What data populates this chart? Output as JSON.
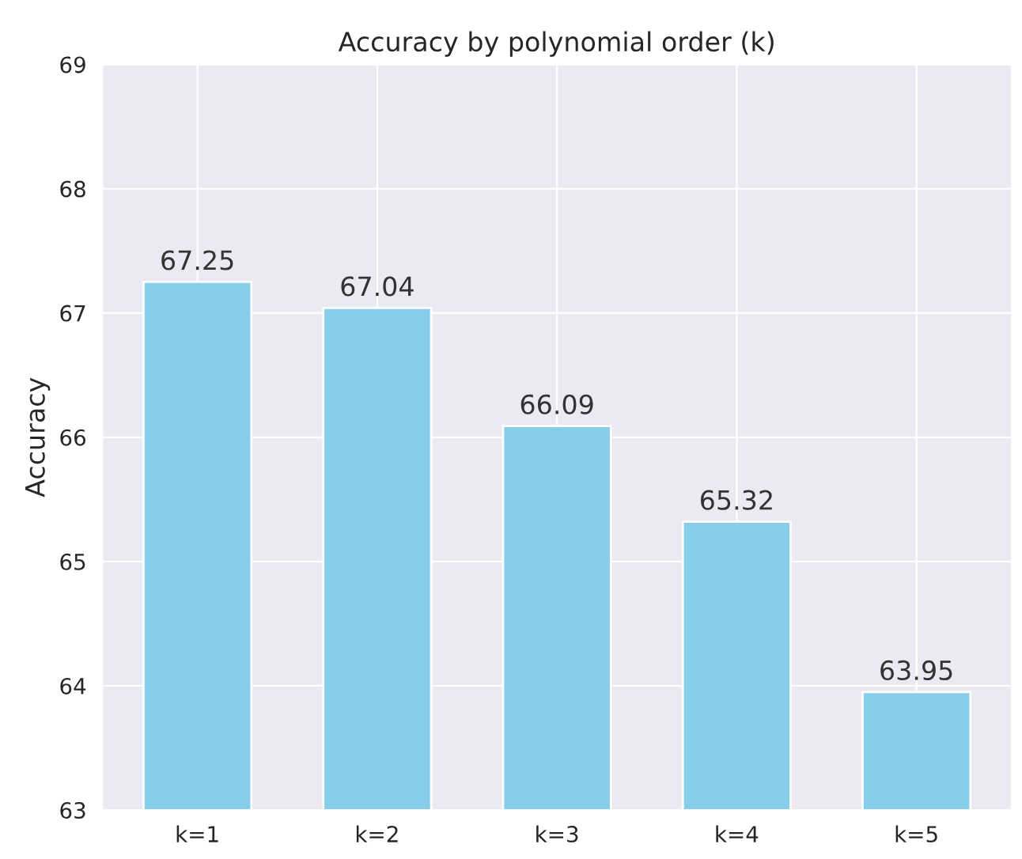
{
  "chart_data": {
    "type": "bar",
    "title": "Accuracy by polynomial order (k)",
    "ylabel": "Accuracy",
    "categories": [
      "k=1",
      "k=2",
      "k=3",
      "k=4",
      "k=5"
    ],
    "values": [
      67.25,
      67.04,
      66.09,
      65.32,
      63.95
    ],
    "color": "#87ceeb",
    "ylim": [
      63,
      69
    ],
    "yticks": [
      63,
      64,
      65,
      66,
      67,
      68,
      69
    ],
    "grid": true,
    "data_labels": true
  }
}
